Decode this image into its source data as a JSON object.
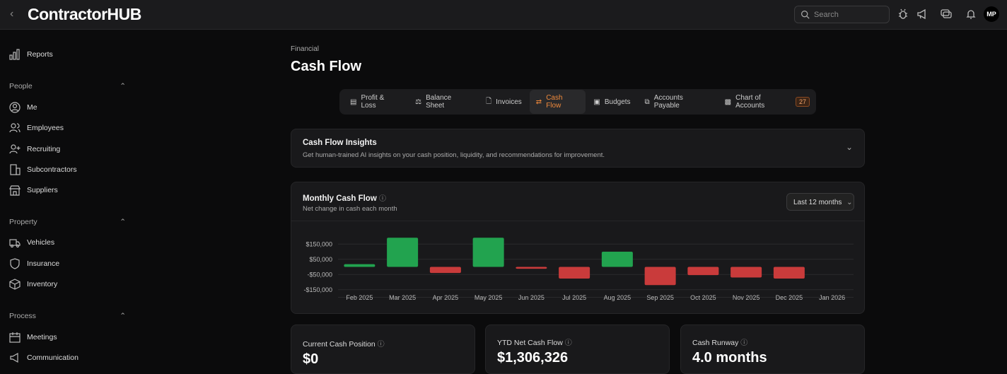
{
  "app": {
    "brand": "ContractorHUB",
    "search_placeholder": "Search",
    "avatar": "MP"
  },
  "sidebar": {
    "top": [
      {
        "label": "Reports",
        "icon": "bar-chart-icon"
      }
    ],
    "sections": [
      {
        "title": "People",
        "items": [
          {
            "label": "Me",
            "icon": "user-circle-icon"
          },
          {
            "label": "Employees",
            "icon": "users-icon"
          },
          {
            "label": "Recruiting",
            "icon": "user-plus-icon"
          },
          {
            "label": "Subcontractors",
            "icon": "building-icon"
          },
          {
            "label": "Suppliers",
            "icon": "store-icon"
          }
        ]
      },
      {
        "title": "Property",
        "items": [
          {
            "label": "Vehicles",
            "icon": "truck-icon"
          },
          {
            "label": "Insurance",
            "icon": "shield-icon"
          },
          {
            "label": "Inventory",
            "icon": "box-icon"
          }
        ]
      },
      {
        "title": "Process",
        "items": [
          {
            "label": "Meetings",
            "icon": "calendar-icon"
          },
          {
            "label": "Communication",
            "icon": "megaphone-icon"
          }
        ]
      }
    ]
  },
  "page": {
    "breadcrumb": "Financial",
    "title": "Cash Flow"
  },
  "tabs": [
    {
      "label": "Profit & Loss"
    },
    {
      "label": "Balance Sheet"
    },
    {
      "label": "Invoices"
    },
    {
      "label": "Cash Flow",
      "active": true
    },
    {
      "label": "Budgets"
    },
    {
      "label": "Accounts Payable"
    },
    {
      "label": "Chart of Accounts",
      "badge": "27"
    }
  ],
  "insights": {
    "title": "Cash Flow Insights",
    "subtitle": "Get human-trained AI insights on your cash position, liquidity, and recommendations for improvement."
  },
  "monthly": {
    "title": "Monthly Cash Flow",
    "subtitle": "Net change in cash each month",
    "range": "Last 12 months"
  },
  "chart_data": {
    "type": "bar",
    "categories": [
      "Feb 2025",
      "Mar 2025",
      "Apr 2025",
      "May 2025",
      "Jun 2025",
      "Jul 2025",
      "Aug 2025",
      "Sep 2025",
      "Oct 2025",
      "Nov 2025",
      "Dec 2025",
      "Jan 2026"
    ],
    "values": [
      18000,
      192000,
      -40000,
      192000,
      -12000,
      -77000,
      100000,
      -120000,
      -54000,
      -70000,
      -77000,
      0
    ],
    "yticks": [
      {
        "v": 150000,
        "label": "$150,000"
      },
      {
        "v": 50000,
        "label": "$50,000"
      },
      {
        "v": -50000,
        "label": "-$50,000"
      },
      {
        "v": -150000,
        "label": "-$150,000"
      }
    ],
    "ylim": [
      -200000,
      200000
    ],
    "colors": {
      "positive": "#22a34f",
      "negative": "#c93b3b"
    },
    "grid": true
  },
  "kpis": [
    {
      "label": "Current Cash Position",
      "value": "$0"
    },
    {
      "label": "YTD Net Cash Flow",
      "value": "$1,306,326"
    },
    {
      "label": "Cash Runway",
      "value": "4.0 months"
    }
  ]
}
